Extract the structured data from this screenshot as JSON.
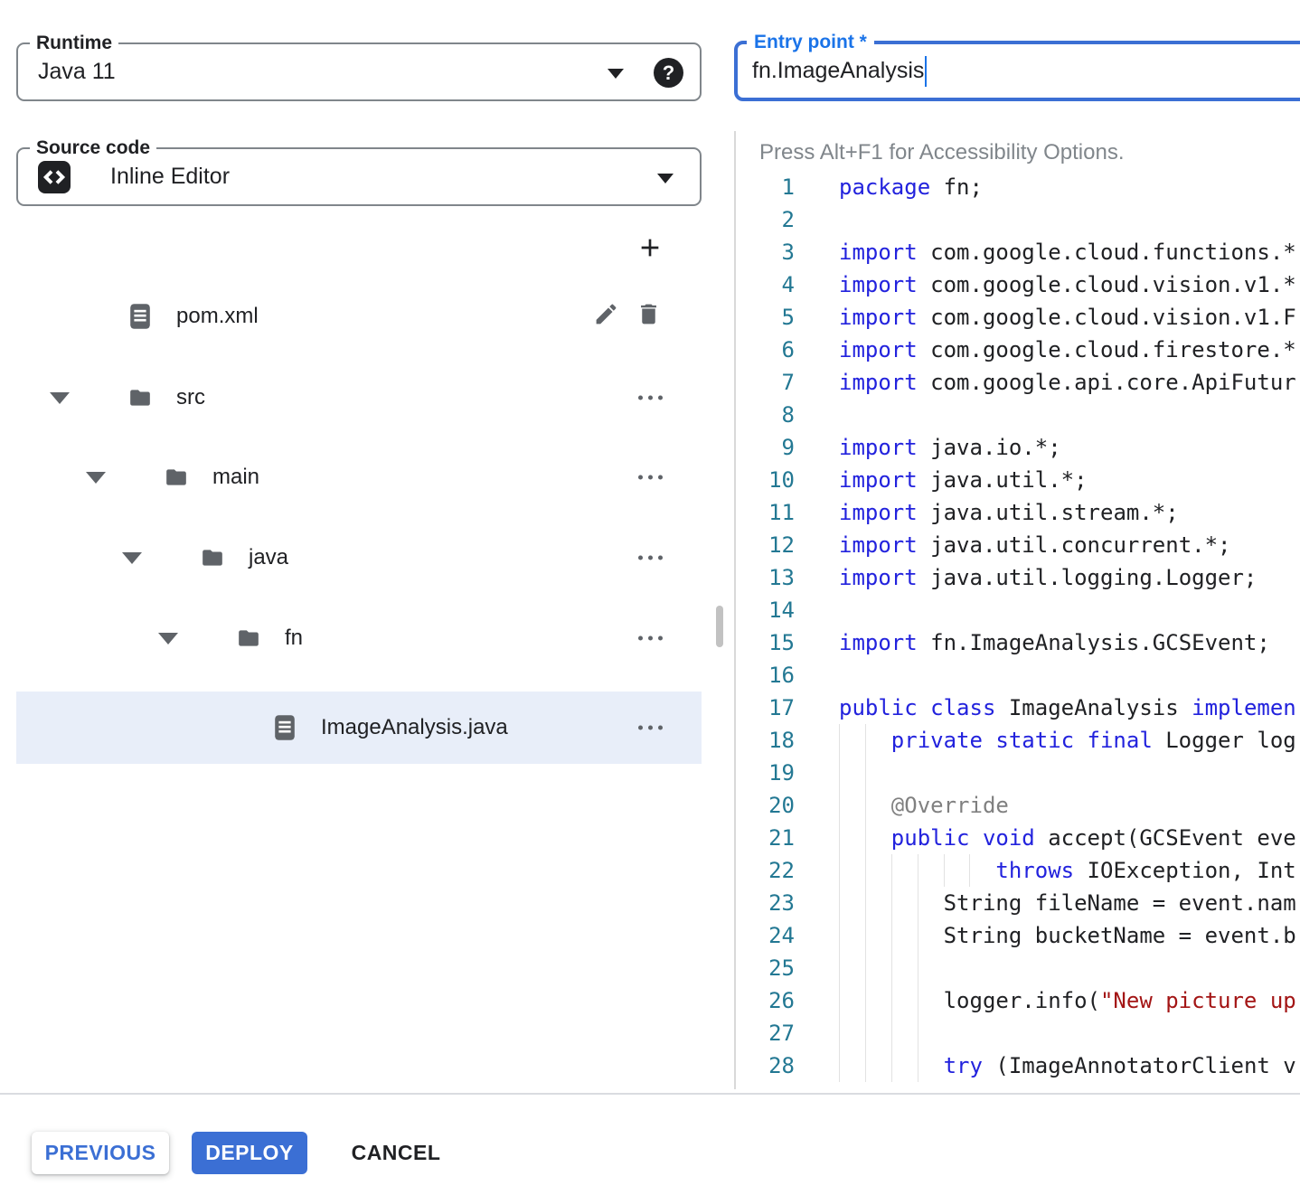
{
  "colors": {
    "accent_blue": "#3b6fd4",
    "entry_label_blue": "#1a73e8",
    "keyword_blue": "#2222dd",
    "string_red": "#a31515",
    "annotation_gray": "#808080",
    "line_number_teal": "#237893",
    "icon_gray": "#5f6368",
    "selected_row_bg": "#e8eef9"
  },
  "left_panel": {
    "runtime": {
      "label": "Runtime",
      "value": "Java 11"
    },
    "source_code": {
      "label": "Source code",
      "value": "Inline Editor"
    },
    "tree": {
      "rows": [
        {
          "label": "pom.xml",
          "kind": "file",
          "depth": 0,
          "selected": false,
          "actions": [
            "edit",
            "delete"
          ]
        },
        {
          "label": "src",
          "kind": "folder",
          "depth": 0,
          "expanded": true,
          "selected": false,
          "actions": [
            "more"
          ]
        },
        {
          "label": "main",
          "kind": "folder",
          "depth": 1,
          "expanded": true,
          "selected": false,
          "actions": [
            "more"
          ]
        },
        {
          "label": "java",
          "kind": "folder",
          "depth": 2,
          "expanded": true,
          "selected": false,
          "actions": [
            "more"
          ]
        },
        {
          "label": "fn",
          "kind": "folder",
          "depth": 3,
          "expanded": true,
          "selected": false,
          "actions": [
            "more"
          ]
        },
        {
          "label": "ImageAnalysis.java",
          "kind": "file",
          "depth": 4,
          "selected": true,
          "actions": [
            "more"
          ]
        }
      ]
    }
  },
  "editor": {
    "entry_point": {
      "label": "Entry point *",
      "value": "fn.ImageAnalysis"
    },
    "a11y_hint": "Press Alt+F1 for Accessibility Options.",
    "lines": [
      {
        "n": 1,
        "guides": [],
        "tokens": [
          {
            "c": "kw",
            "t": "package"
          },
          {
            "c": "pl",
            "t": " fn;"
          }
        ]
      },
      {
        "n": 2,
        "guides": [],
        "tokens": []
      },
      {
        "n": 3,
        "guides": [],
        "tokens": [
          {
            "c": "kw",
            "t": "import"
          },
          {
            "c": "pl",
            "t": " com.google.cloud.functions.*"
          }
        ]
      },
      {
        "n": 4,
        "guides": [],
        "tokens": [
          {
            "c": "kw",
            "t": "import"
          },
          {
            "c": "pl",
            "t": " com.google.cloud.vision.v1.*"
          }
        ]
      },
      {
        "n": 5,
        "guides": [],
        "tokens": [
          {
            "c": "kw",
            "t": "import"
          },
          {
            "c": "pl",
            "t": " com.google.cloud.vision.v1.F"
          }
        ]
      },
      {
        "n": 6,
        "guides": [],
        "tokens": [
          {
            "c": "kw",
            "t": "import"
          },
          {
            "c": "pl",
            "t": " com.google.cloud.firestore.*"
          }
        ]
      },
      {
        "n": 7,
        "guides": [],
        "tokens": [
          {
            "c": "kw",
            "t": "import"
          },
          {
            "c": "pl",
            "t": " com.google.api.core.ApiFutur"
          }
        ]
      },
      {
        "n": 8,
        "guides": [],
        "tokens": []
      },
      {
        "n": 9,
        "guides": [],
        "tokens": [
          {
            "c": "kw",
            "t": "import"
          },
          {
            "c": "pl",
            "t": " java.io.*;"
          }
        ]
      },
      {
        "n": 10,
        "guides": [],
        "tokens": [
          {
            "c": "kw",
            "t": "import"
          },
          {
            "c": "pl",
            "t": " java.util.*;"
          }
        ]
      },
      {
        "n": 11,
        "guides": [],
        "tokens": [
          {
            "c": "kw",
            "t": "import"
          },
          {
            "c": "pl",
            "t": " java.util.stream.*;"
          }
        ]
      },
      {
        "n": 12,
        "guides": [],
        "tokens": [
          {
            "c": "kw",
            "t": "import"
          },
          {
            "c": "pl",
            "t": " java.util.concurrent.*;"
          }
        ]
      },
      {
        "n": 13,
        "guides": [],
        "tokens": [
          {
            "c": "kw",
            "t": "import"
          },
          {
            "c": "pl",
            "t": " java.util.logging.Logger;"
          }
        ]
      },
      {
        "n": 14,
        "guides": [],
        "tokens": []
      },
      {
        "n": 15,
        "guides": [],
        "tokens": [
          {
            "c": "kw",
            "t": "import"
          },
          {
            "c": "pl",
            "t": " fn.ImageAnalysis.GCSEvent;"
          }
        ]
      },
      {
        "n": 16,
        "guides": [],
        "tokens": []
      },
      {
        "n": 17,
        "guides": [],
        "tokens": [
          {
            "c": "kw",
            "t": "public"
          },
          {
            "c": "pl",
            "t": " "
          },
          {
            "c": "kw",
            "t": "class"
          },
          {
            "c": "pl",
            "t": " ImageAnalysis "
          },
          {
            "c": "kw",
            "t": "implemen"
          }
        ]
      },
      {
        "n": 18,
        "guides": [
          0,
          2
        ],
        "tokens": [
          {
            "c": "pl",
            "t": "    "
          },
          {
            "c": "kw",
            "t": "private static final"
          },
          {
            "c": "pl",
            "t": " Logger log"
          }
        ]
      },
      {
        "n": 19,
        "guides": [
          0,
          2
        ],
        "tokens": []
      },
      {
        "n": 20,
        "guides": [
          0,
          2
        ],
        "tokens": [
          {
            "c": "pl",
            "t": "    "
          },
          {
            "c": "an",
            "t": "@Override"
          }
        ]
      },
      {
        "n": 21,
        "guides": [
          0,
          2
        ],
        "tokens": [
          {
            "c": "pl",
            "t": "    "
          },
          {
            "c": "kw",
            "t": "public"
          },
          {
            "c": "pl",
            "t": " "
          },
          {
            "c": "kw",
            "t": "void"
          },
          {
            "c": "pl",
            "t": " accept(GCSEvent eve"
          }
        ]
      },
      {
        "n": 22,
        "guides": [
          0,
          2,
          4,
          6,
          8,
          10
        ],
        "tokens": [
          {
            "c": "pl",
            "t": "            "
          },
          {
            "c": "kw",
            "t": "throws"
          },
          {
            "c": "pl",
            "t": " IOException, Int"
          }
        ]
      },
      {
        "n": 23,
        "guides": [
          0,
          2,
          4,
          6
        ],
        "tokens": [
          {
            "c": "pl",
            "t": "        String fileName = event.nam"
          }
        ]
      },
      {
        "n": 24,
        "guides": [
          0,
          2,
          4,
          6
        ],
        "tokens": [
          {
            "c": "pl",
            "t": "        String bucketName = event.b"
          }
        ]
      },
      {
        "n": 25,
        "guides": [
          0,
          2,
          4,
          6
        ],
        "tokens": []
      },
      {
        "n": 26,
        "guides": [
          0,
          2,
          4,
          6
        ],
        "tokens": [
          {
            "c": "pl",
            "t": "        logger.info("
          },
          {
            "c": "st",
            "t": "\"New picture up"
          }
        ]
      },
      {
        "n": 27,
        "guides": [
          0,
          2,
          4,
          6
        ],
        "tokens": []
      },
      {
        "n": 28,
        "guides": [
          0,
          2,
          4,
          6
        ],
        "tokens": [
          {
            "c": "pl",
            "t": "        "
          },
          {
            "c": "kw",
            "t": "try"
          },
          {
            "c": "pl",
            "t": " (ImageAnnotatorClient v"
          }
        ]
      }
    ]
  },
  "footer": {
    "previous": "PREVIOUS",
    "deploy": "DEPLOY",
    "cancel": "CANCEL"
  }
}
